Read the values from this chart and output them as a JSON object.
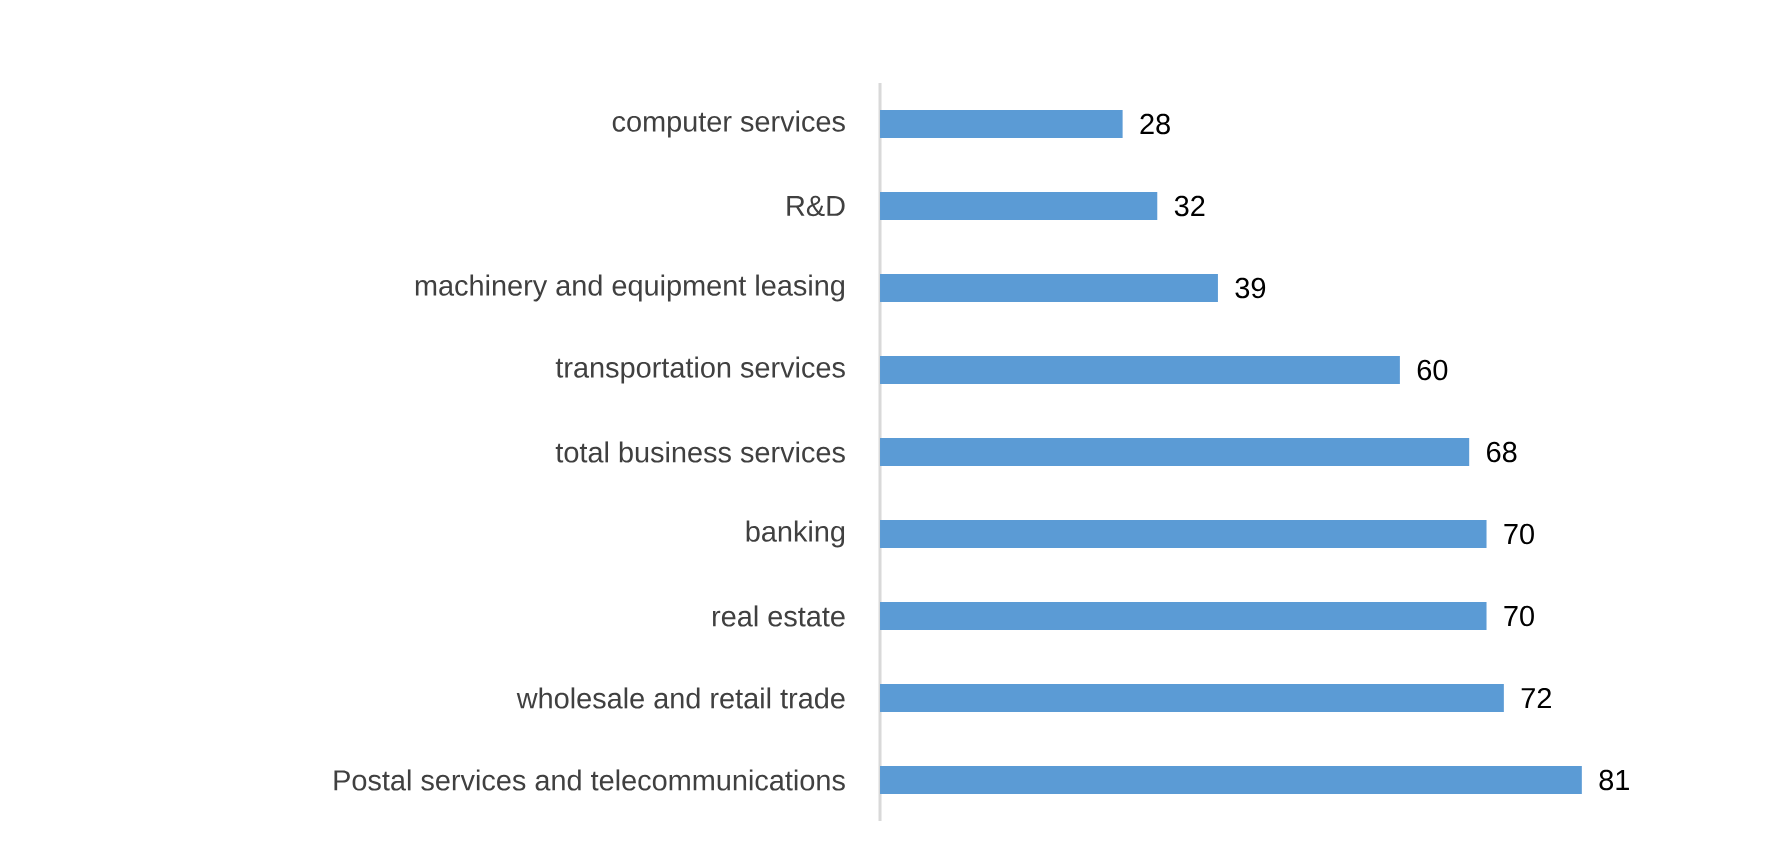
{
  "chart_data": {
    "type": "bar",
    "orientation": "horizontal",
    "data_labels": true,
    "color": "#5b9bd5",
    "categories": [
      "computer services",
      "R&D",
      "machinery and equipment leasing",
      "transportation services",
      "total business services",
      "banking",
      "real estate",
      "wholesale and retail trade",
      "Postal services and telecommunications"
    ],
    "values": [
      28,
      32,
      39,
      60,
      68,
      70,
      70,
      72,
      81
    ]
  }
}
